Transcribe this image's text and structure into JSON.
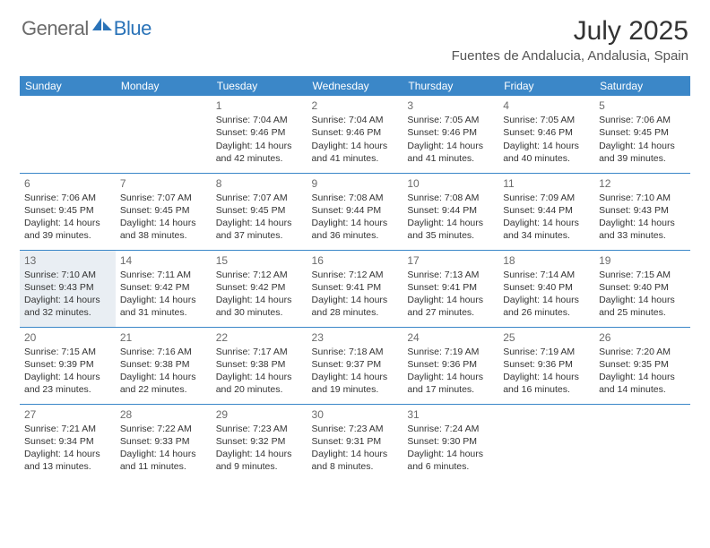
{
  "logo": {
    "general": "General",
    "blue": "Blue"
  },
  "header": {
    "month_title": "July 2025",
    "location": "Fuentes de Andalucia, Andalusia, Spain"
  },
  "calendar": {
    "day_headers": [
      "Sunday",
      "Monday",
      "Tuesday",
      "Wednesday",
      "Thursday",
      "Friday",
      "Saturday"
    ],
    "header_bg": "#3b87c8",
    "header_fg": "#ffffff",
    "shaded_bg": "#e9eef3",
    "border_color": "#3b87c8",
    "weeks": [
      [
        {
          "day": "",
          "lines": []
        },
        {
          "day": "",
          "lines": []
        },
        {
          "day": "1",
          "lines": [
            "Sunrise: 7:04 AM",
            "Sunset: 9:46 PM",
            "Daylight: 14 hours",
            "and 42 minutes."
          ]
        },
        {
          "day": "2",
          "lines": [
            "Sunrise: 7:04 AM",
            "Sunset: 9:46 PM",
            "Daylight: 14 hours",
            "and 41 minutes."
          ]
        },
        {
          "day": "3",
          "lines": [
            "Sunrise: 7:05 AM",
            "Sunset: 9:46 PM",
            "Daylight: 14 hours",
            "and 41 minutes."
          ]
        },
        {
          "day": "4",
          "lines": [
            "Sunrise: 7:05 AM",
            "Sunset: 9:46 PM",
            "Daylight: 14 hours",
            "and 40 minutes."
          ]
        },
        {
          "day": "5",
          "lines": [
            "Sunrise: 7:06 AM",
            "Sunset: 9:45 PM",
            "Daylight: 14 hours",
            "and 39 minutes."
          ]
        }
      ],
      [
        {
          "day": "6",
          "lines": [
            "Sunrise: 7:06 AM",
            "Sunset: 9:45 PM",
            "Daylight: 14 hours",
            "and 39 minutes."
          ]
        },
        {
          "day": "7",
          "lines": [
            "Sunrise: 7:07 AM",
            "Sunset: 9:45 PM",
            "Daylight: 14 hours",
            "and 38 minutes."
          ]
        },
        {
          "day": "8",
          "lines": [
            "Sunrise: 7:07 AM",
            "Sunset: 9:45 PM",
            "Daylight: 14 hours",
            "and 37 minutes."
          ]
        },
        {
          "day": "9",
          "lines": [
            "Sunrise: 7:08 AM",
            "Sunset: 9:44 PM",
            "Daylight: 14 hours",
            "and 36 minutes."
          ]
        },
        {
          "day": "10",
          "lines": [
            "Sunrise: 7:08 AM",
            "Sunset: 9:44 PM",
            "Daylight: 14 hours",
            "and 35 minutes."
          ]
        },
        {
          "day": "11",
          "lines": [
            "Sunrise: 7:09 AM",
            "Sunset: 9:44 PM",
            "Daylight: 14 hours",
            "and 34 minutes."
          ]
        },
        {
          "day": "12",
          "lines": [
            "Sunrise: 7:10 AM",
            "Sunset: 9:43 PM",
            "Daylight: 14 hours",
            "and 33 minutes."
          ]
        }
      ],
      [
        {
          "day": "13",
          "shaded": true,
          "lines": [
            "Sunrise: 7:10 AM",
            "Sunset: 9:43 PM",
            "Daylight: 14 hours",
            "and 32 minutes."
          ]
        },
        {
          "day": "14",
          "lines": [
            "Sunrise: 7:11 AM",
            "Sunset: 9:42 PM",
            "Daylight: 14 hours",
            "and 31 minutes."
          ]
        },
        {
          "day": "15",
          "lines": [
            "Sunrise: 7:12 AM",
            "Sunset: 9:42 PM",
            "Daylight: 14 hours",
            "and 30 minutes."
          ]
        },
        {
          "day": "16",
          "lines": [
            "Sunrise: 7:12 AM",
            "Sunset: 9:41 PM",
            "Daylight: 14 hours",
            "and 28 minutes."
          ]
        },
        {
          "day": "17",
          "lines": [
            "Sunrise: 7:13 AM",
            "Sunset: 9:41 PM",
            "Daylight: 14 hours",
            "and 27 minutes."
          ]
        },
        {
          "day": "18",
          "lines": [
            "Sunrise: 7:14 AM",
            "Sunset: 9:40 PM",
            "Daylight: 14 hours",
            "and 26 minutes."
          ]
        },
        {
          "day": "19",
          "lines": [
            "Sunrise: 7:15 AM",
            "Sunset: 9:40 PM",
            "Daylight: 14 hours",
            "and 25 minutes."
          ]
        }
      ],
      [
        {
          "day": "20",
          "lines": [
            "Sunrise: 7:15 AM",
            "Sunset: 9:39 PM",
            "Daylight: 14 hours",
            "and 23 minutes."
          ]
        },
        {
          "day": "21",
          "lines": [
            "Sunrise: 7:16 AM",
            "Sunset: 9:38 PM",
            "Daylight: 14 hours",
            "and 22 minutes."
          ]
        },
        {
          "day": "22",
          "lines": [
            "Sunrise: 7:17 AM",
            "Sunset: 9:38 PM",
            "Daylight: 14 hours",
            "and 20 minutes."
          ]
        },
        {
          "day": "23",
          "lines": [
            "Sunrise: 7:18 AM",
            "Sunset: 9:37 PM",
            "Daylight: 14 hours",
            "and 19 minutes."
          ]
        },
        {
          "day": "24",
          "lines": [
            "Sunrise: 7:19 AM",
            "Sunset: 9:36 PM",
            "Daylight: 14 hours",
            "and 17 minutes."
          ]
        },
        {
          "day": "25",
          "lines": [
            "Sunrise: 7:19 AM",
            "Sunset: 9:36 PM",
            "Daylight: 14 hours",
            "and 16 minutes."
          ]
        },
        {
          "day": "26",
          "lines": [
            "Sunrise: 7:20 AM",
            "Sunset: 9:35 PM",
            "Daylight: 14 hours",
            "and 14 minutes."
          ]
        }
      ],
      [
        {
          "day": "27",
          "lines": [
            "Sunrise: 7:21 AM",
            "Sunset: 9:34 PM",
            "Daylight: 14 hours",
            "and 13 minutes."
          ]
        },
        {
          "day": "28",
          "lines": [
            "Sunrise: 7:22 AM",
            "Sunset: 9:33 PM",
            "Daylight: 14 hours",
            "and 11 minutes."
          ]
        },
        {
          "day": "29",
          "lines": [
            "Sunrise: 7:23 AM",
            "Sunset: 9:32 PM",
            "Daylight: 14 hours",
            "and 9 minutes."
          ]
        },
        {
          "day": "30",
          "lines": [
            "Sunrise: 7:23 AM",
            "Sunset: 9:31 PM",
            "Daylight: 14 hours",
            "and 8 minutes."
          ]
        },
        {
          "day": "31",
          "lines": [
            "Sunrise: 7:24 AM",
            "Sunset: 9:30 PM",
            "Daylight: 14 hours",
            "and 6 minutes."
          ]
        },
        {
          "day": "",
          "lines": []
        },
        {
          "day": "",
          "lines": []
        }
      ]
    ]
  }
}
